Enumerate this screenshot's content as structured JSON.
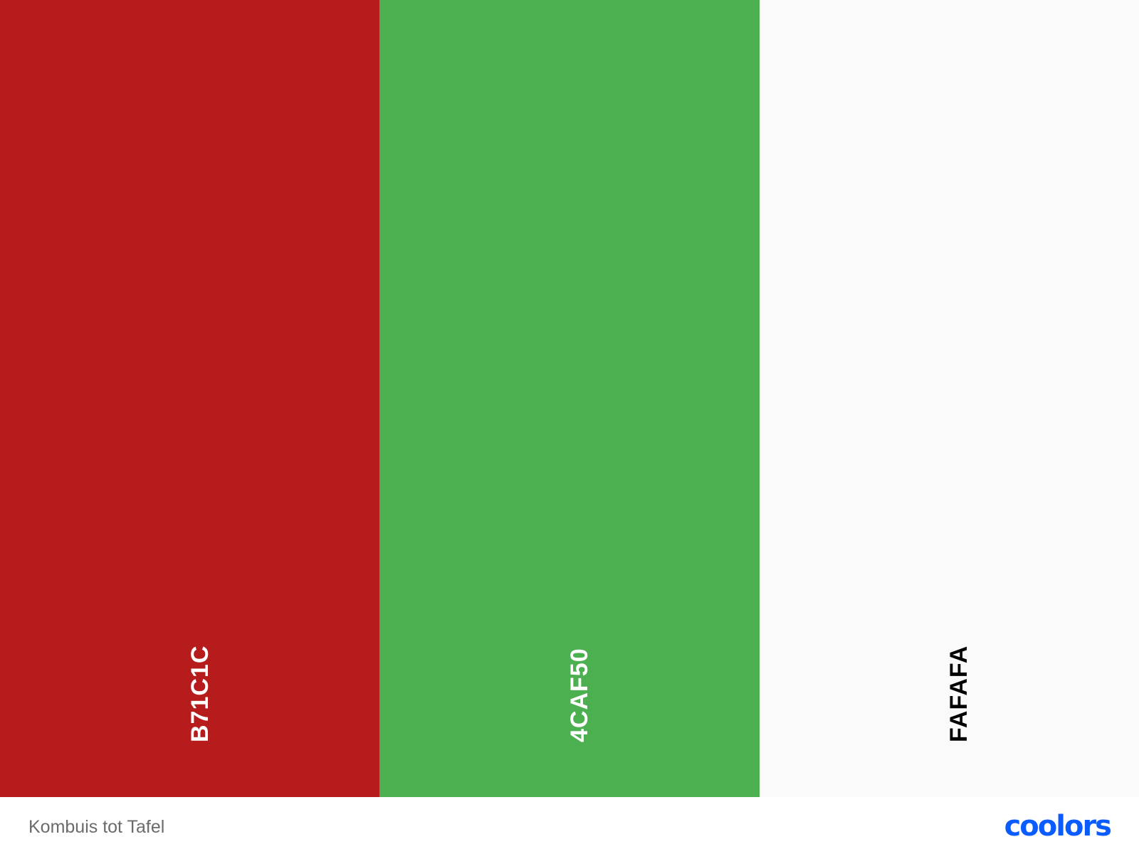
{
  "palette": {
    "swatches": [
      {
        "hex": "B71C1C",
        "color": "#B71C1C",
        "text_color": "#ffffff"
      },
      {
        "hex": "4CAF50",
        "color": "#4CAF50",
        "text_color": "#ffffff"
      },
      {
        "hex": "FAFAFA",
        "color": "#FAFAFA",
        "text_color": "#000000"
      }
    ]
  },
  "footer": {
    "palette_name": "Kombuis tot Tafel",
    "logo_text": "coolors",
    "logo_color": "#0A5CFF"
  }
}
